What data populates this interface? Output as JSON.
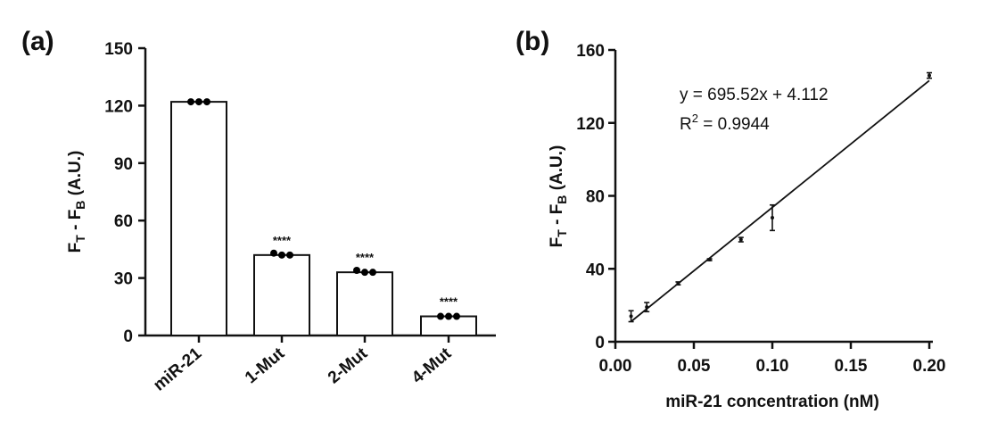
{
  "chart_data": [
    {
      "type": "bar",
      "panel_label": "(a)",
      "categories": [
        "miR-21",
        "1-Mut",
        "2-Mut",
        "4-Mut"
      ],
      "values": [
        122,
        42,
        33,
        10
      ],
      "points": [
        [
          122,
          122,
          122
        ],
        [
          43,
          42,
          42
        ],
        [
          34,
          33,
          33
        ],
        [
          10,
          10,
          10
        ]
      ],
      "significance": [
        "",
        "****",
        "****",
        "****"
      ],
      "ylabel": {
        "main": "F",
        "sub1": "T",
        "mid": " - F",
        "sub2": "B",
        "tail": " (A.U.)"
      },
      "ylim": [
        0,
        150
      ],
      "yticks": [
        0,
        30,
        60,
        90,
        120,
        150
      ],
      "bar_color": "#ffffff",
      "point_color": "#000000"
    },
    {
      "type": "scatter",
      "panel_label": "(b)",
      "xlabel": "miR-21 concentration (nM)",
      "ylabel": {
        "main": "F",
        "sub1": "T",
        "mid": " - F",
        "sub2": "B",
        "tail": " (A.U.)"
      },
      "xlim": [
        0,
        0.2
      ],
      "ylim": [
        0,
        160
      ],
      "xticks": [
        "0.00",
        "0.05",
        "0.10",
        "0.15",
        "0.20"
      ],
      "yticks": [
        0,
        40,
        80,
        120,
        160
      ],
      "points": [
        {
          "x": 0.01,
          "y": 14,
          "err": 3
        },
        {
          "x": 0.02,
          "y": 19,
          "err": 2.5
        },
        {
          "x": 0.04,
          "y": 32,
          "err": 0.8
        },
        {
          "x": 0.06,
          "y": 45,
          "err": 0.5
        },
        {
          "x": 0.08,
          "y": 56,
          "err": 1.2
        },
        {
          "x": 0.1,
          "y": 68,
          "err": 7
        },
        {
          "x": 0.2,
          "y": 146,
          "err": 1.5
        }
      ],
      "fit": {
        "slope": 695.52,
        "intercept": 4.112,
        "x_range": [
          0.01,
          0.2
        ]
      },
      "equation": "y = 695.52x + 4.112",
      "r2_prefix": "R",
      "r2_sup": "2",
      "r2_value": " = 0.9944"
    }
  ]
}
